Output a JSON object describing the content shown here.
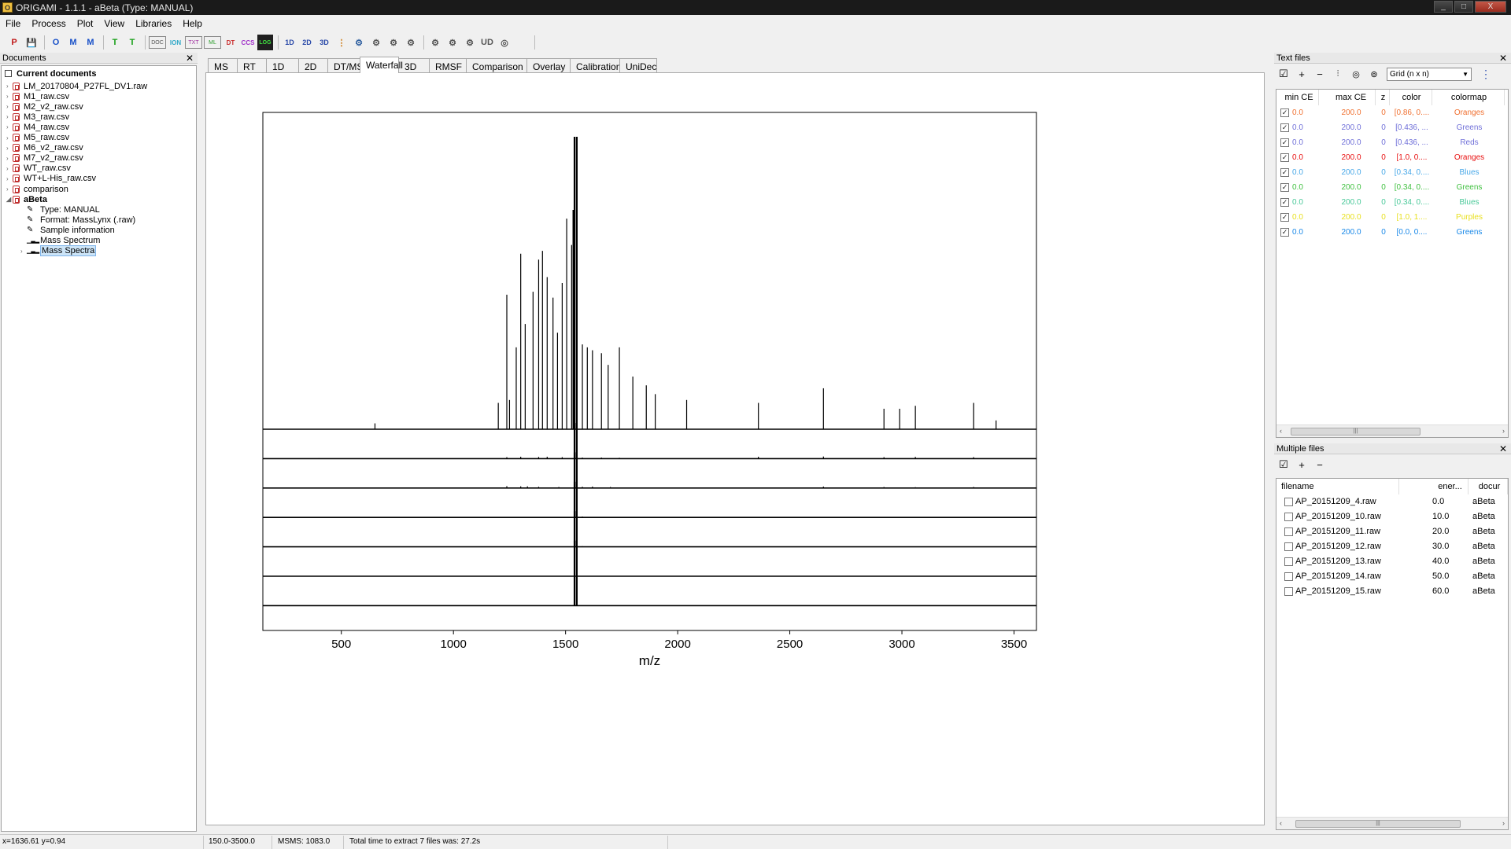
{
  "window": {
    "title": "ORIGAMI - 1.1.1 - aBeta (Type: MANUAL)",
    "controls": [
      "_",
      "□",
      "X"
    ]
  },
  "menu": [
    "File",
    "Process",
    "Plot",
    "View",
    "Libraries",
    "Help"
  ],
  "toolbar": {
    "buttons": [
      "P",
      "💾",
      "O",
      "M",
      "M",
      "T",
      "T",
      "DOC",
      "ION",
      "TXT",
      "ML",
      "DT",
      "CCS",
      "LOG",
      "1D",
      "2D",
      "3D",
      "⋮",
      "⚙",
      "⚙",
      "⚙",
      "⚙",
      "⚙",
      "⚙",
      "⚙",
      "UD",
      "◎"
    ]
  },
  "documents_panel": {
    "title": "Documents",
    "root": "Current documents",
    "items": [
      {
        "label": "LM_20170804_P27FL_DV1.raw",
        "type": "doc",
        "bold": false,
        "level": 1,
        "expand": "›"
      },
      {
        "label": "M1_raw.csv",
        "type": "doc",
        "bold": false,
        "level": 1,
        "expand": "›"
      },
      {
        "label": "M2_v2_raw.csv",
        "type": "doc",
        "bold": false,
        "level": 1,
        "expand": "›"
      },
      {
        "label": "M3_raw.csv",
        "type": "doc",
        "bold": false,
        "level": 1,
        "expand": "›"
      },
      {
        "label": "M4_raw.csv",
        "type": "doc",
        "bold": false,
        "level": 1,
        "expand": "›"
      },
      {
        "label": "M5_raw.csv",
        "type": "doc",
        "bold": false,
        "level": 1,
        "expand": "›"
      },
      {
        "label": "M6_v2_raw.csv",
        "type": "doc",
        "bold": false,
        "level": 1,
        "expand": "›"
      },
      {
        "label": "M7_v2_raw.csv",
        "type": "doc",
        "bold": false,
        "level": 1,
        "expand": "›"
      },
      {
        "label": "WT_raw.csv",
        "type": "doc",
        "bold": false,
        "level": 1,
        "expand": "›"
      },
      {
        "label": "WT+L-His_raw.csv",
        "type": "doc",
        "bold": false,
        "level": 1,
        "expand": "›"
      },
      {
        "label": "comparison",
        "type": "doc",
        "bold": false,
        "level": 1,
        "expand": "›"
      },
      {
        "label": "aBeta",
        "type": "doc",
        "bold": true,
        "level": 1,
        "expand": "◢"
      },
      {
        "label": "Type: MANUAL",
        "type": "pencil",
        "bold": false,
        "level": 2,
        "expand": ""
      },
      {
        "label": "Format: MassLynx (.raw)",
        "type": "pencil",
        "bold": false,
        "level": 2,
        "expand": ""
      },
      {
        "label": "Sample information",
        "type": "pencil",
        "bold": false,
        "level": 2,
        "expand": ""
      },
      {
        "label": "Mass Spectrum",
        "type": "chart",
        "bold": false,
        "level": 2,
        "expand": ""
      },
      {
        "label": "Mass Spectra",
        "type": "chart",
        "bold": false,
        "level": 2,
        "expand": "›",
        "selected": true
      }
    ]
  },
  "tabs": [
    {
      "label": "MS",
      "active": false
    },
    {
      "label": "RT",
      "active": false
    },
    {
      "label": "1D",
      "active": false
    },
    {
      "label": "2D",
      "active": false
    },
    {
      "label": "DT/MS",
      "active": false
    },
    {
      "label": "Waterfall",
      "active": true
    },
    {
      "label": "3D",
      "active": false
    },
    {
      "label": "RMSF",
      "active": false
    },
    {
      "label": "Comparison",
      "active": false
    },
    {
      "label": "Overlay",
      "active": false
    },
    {
      "label": "Calibration",
      "active": false
    },
    {
      "label": "UniDec",
      "active": false
    }
  ],
  "chart_data": {
    "type": "line",
    "style": "waterfall",
    "xlabel": "m/z",
    "xlim": [
      150,
      3600
    ],
    "xticks": [
      500,
      1000,
      1500,
      2000,
      2500,
      3000,
      3500
    ],
    "y_axis_visible": false,
    "grid": false,
    "series": [
      {
        "peaks": [
          [
            1540,
            1.0
          ],
          [
            1550,
            1.0
          ],
          [
            1535,
            0.75
          ],
          [
            1505,
            0.72
          ],
          [
            1527,
            0.63
          ],
          [
            1444,
            0.45
          ],
          [
            1485,
            0.5
          ],
          [
            1238,
            0.46
          ],
          [
            1300,
            0.6
          ],
          [
            1380,
            0.58
          ],
          [
            1397,
            0.61
          ],
          [
            1418,
            0.52
          ],
          [
            1355,
            0.47
          ],
          [
            1464,
            0.33
          ],
          [
            1280,
            0.28
          ],
          [
            1320,
            0.36
          ],
          [
            1575,
            0.29
          ],
          [
            1597,
            0.28
          ],
          [
            1620,
            0.27
          ],
          [
            1660,
            0.26
          ],
          [
            1690,
            0.22
          ],
          [
            1740,
            0.28
          ],
          [
            1800,
            0.18
          ],
          [
            1860,
            0.15
          ],
          [
            1900,
            0.12
          ],
          [
            2040,
            0.1
          ],
          [
            2360,
            0.09
          ],
          [
            2650,
            0.14
          ],
          [
            2920,
            0.07
          ],
          [
            2990,
            0.07
          ],
          [
            3060,
            0.08
          ],
          [
            3320,
            0.09
          ],
          [
            3420,
            0.03
          ],
          [
            650,
            0.02
          ],
          [
            1200,
            0.09
          ],
          [
            1250,
            0.1
          ]
        ]
      },
      {
        "peaks": [
          [
            1540,
            1.0
          ],
          [
            1550,
            1.0
          ],
          [
            1238,
            0.07
          ],
          [
            1300,
            0.09
          ],
          [
            1380,
            0.08
          ],
          [
            1418,
            0.09
          ],
          [
            1485,
            0.07
          ],
          [
            1575,
            0.05
          ],
          [
            1660,
            0.05
          ],
          [
            1740,
            0.04
          ],
          [
            2360,
            0.09
          ],
          [
            2650,
            0.1
          ],
          [
            2920,
            0.07
          ],
          [
            3060,
            0.08
          ],
          [
            3320,
            0.07
          ],
          [
            400,
            0.02
          ]
        ]
      },
      {
        "peaks": [
          [
            1540,
            1.0
          ],
          [
            1550,
            1.0
          ],
          [
            1238,
            0.09
          ],
          [
            1300,
            0.08
          ],
          [
            1330,
            0.08
          ],
          [
            1380,
            0.06
          ],
          [
            1470,
            0.05
          ],
          [
            1575,
            0.06
          ],
          [
            1620,
            0.07
          ],
          [
            1700,
            0.05
          ],
          [
            2020,
            0.02
          ],
          [
            2360,
            0.03
          ],
          [
            2650,
            0.07
          ],
          [
            2920,
            0.05
          ],
          [
            3060,
            0.04
          ],
          [
            3320,
            0.05
          ]
        ]
      },
      {
        "peaks": [
          [
            1540,
            1.0
          ],
          [
            1550,
            1.0
          ],
          [
            1300,
            0.02
          ],
          [
            1330,
            0.02
          ],
          [
            1418,
            0.02
          ],
          [
            1575,
            0.04
          ],
          [
            1620,
            0.02
          ],
          [
            2650,
            0.01
          ]
        ]
      },
      {
        "peaks": [
          [
            1540,
            1.0
          ],
          [
            1550,
            1.0
          ],
          [
            1575,
            0.03
          ],
          [
            1620,
            0.01
          ]
        ]
      },
      {
        "peaks": [
          [
            1540,
            1.0
          ],
          [
            1550,
            1.0
          ],
          [
            1575,
            0.01
          ]
        ]
      },
      {
        "peaks": [
          [
            1540,
            1.0
          ],
          [
            1550,
            1.0
          ]
        ]
      }
    ]
  },
  "text_files_panel": {
    "title": "Text files",
    "layout_select": "Grid (n x n)",
    "columns": [
      "min CE",
      "max CE",
      "z",
      "color",
      "colormap"
    ],
    "rows": [
      {
        "checked": true,
        "min": "0.0",
        "max": "200.0",
        "z": "0",
        "color": "[0.86, 0....",
        "colormap": "Oranges",
        "text_color": "#f07030"
      },
      {
        "checked": true,
        "min": "0.0",
        "max": "200.0",
        "z": "0",
        "color": "[0.436, ...",
        "colormap": "Greens",
        "text_color": "#6f6fd8"
      },
      {
        "checked": true,
        "min": "0.0",
        "max": "200.0",
        "z": "0",
        "color": "[0.436, ...",
        "colormap": "Reds",
        "text_color": "#6f6fd8"
      },
      {
        "checked": true,
        "min": "0.0",
        "max": "200.0",
        "z": "0",
        "color": "[1.0, 0....",
        "colormap": "Oranges",
        "text_color": "#e81010"
      },
      {
        "checked": true,
        "min": "0.0",
        "max": "200.0",
        "z": "0",
        "color": "[0.34, 0....",
        "colormap": "Blues",
        "text_color": "#48a8e8"
      },
      {
        "checked": true,
        "min": "0.0",
        "max": "200.0",
        "z": "0",
        "color": "[0.34, 0....",
        "colormap": "Greens",
        "text_color": "#40c040"
      },
      {
        "checked": true,
        "min": "0.0",
        "max": "200.0",
        "z": "0",
        "color": "[0.34, 0....",
        "colormap": "Blues",
        "text_color": "#48c898"
      },
      {
        "checked": true,
        "min": "0.0",
        "max": "200.0",
        "z": "0",
        "color": "[1.0, 1....",
        "colormap": "Purples",
        "text_color": "#e8e020"
      },
      {
        "checked": true,
        "min": "0.0",
        "max": "200.0",
        "z": "0",
        "color": "[0.0, 0....",
        "colormap": "Greens",
        "text_color": "#1888e8"
      }
    ],
    "scroll_glyphs": [
      "‹",
      "›",
      "|||"
    ]
  },
  "multiple_files_panel": {
    "title": "Multiple files",
    "columns": [
      "filename",
      "ener...",
      "docur"
    ],
    "rows": [
      {
        "checked": false,
        "filename": "AP_20151209_4.raw",
        "energy": "0.0",
        "document": "aBeta"
      },
      {
        "checked": false,
        "filename": "AP_20151209_10.raw",
        "energy": "10.0",
        "document": "aBeta"
      },
      {
        "checked": false,
        "filename": "AP_20151209_11.raw",
        "energy": "20.0",
        "document": "aBeta"
      },
      {
        "checked": false,
        "filename": "AP_20151209_12.raw",
        "energy": "30.0",
        "document": "aBeta"
      },
      {
        "checked": false,
        "filename": "AP_20151209_13.raw",
        "energy": "40.0",
        "document": "aBeta"
      },
      {
        "checked": false,
        "filename": "AP_20151209_14.raw",
        "energy": "50.0",
        "document": "aBeta"
      },
      {
        "checked": false,
        "filename": "AP_20151209_15.raw",
        "energy": "60.0",
        "document": "aBeta"
      }
    ]
  },
  "statusbar": {
    "cursor": "x=1636.61 y=0.94",
    "range": "150.0-3500.0",
    "msms": "MSMS: 1083.0",
    "message": "Total time to extract 7 files was: 27.2s"
  }
}
